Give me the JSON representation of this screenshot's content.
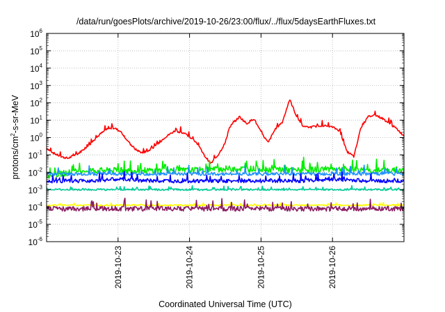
{
  "chart_data": {
    "type": "line",
    "title": "/data/run/goesPlots/archive/2019-10-26/23:00/flux/../flux/5daysEarthFluxes.txt",
    "xlabel": "Coordinated Universal Time (UTC)",
    "ylabel_parts": [
      "protons/cm",
      "2",
      "-s-sr-MeV"
    ],
    "yscale": "log",
    "ylim_exp": [
      -6,
      6
    ],
    "y_ticks_exp": [
      -6,
      -5,
      -4,
      -3,
      -2,
      -1,
      0,
      1,
      2,
      3,
      4,
      5,
      6
    ],
    "x_ticks": [
      "2019-10-23",
      "2019-10-24",
      "2019-10-25",
      "2019-10-26"
    ],
    "xlim_days": [
      22.0,
      27.0
    ],
    "x_tick_days": [
      23.0,
      24.0,
      25.0,
      26.0
    ],
    "grid": true,
    "series": [
      {
        "color": "#ff0000",
        "log_points": [
          [
            22.0,
            -0.6
          ],
          [
            22.1,
            -0.9
          ],
          [
            22.2,
            -1.1
          ],
          [
            22.3,
            -1.2
          ],
          [
            22.45,
            -0.9
          ],
          [
            22.6,
            -0.4
          ],
          [
            22.75,
            0.2
          ],
          [
            22.85,
            0.5
          ],
          [
            22.95,
            0.55
          ],
          [
            23.05,
            0.3
          ],
          [
            23.15,
            -0.3
          ],
          [
            23.25,
            -0.7
          ],
          [
            23.35,
            -0.9
          ],
          [
            23.5,
            -0.6
          ],
          [
            23.65,
            0.0
          ],
          [
            23.8,
            0.4
          ],
          [
            23.95,
            0.2
          ],
          [
            24.1,
            -0.3
          ],
          [
            24.2,
            -1.0
          ],
          [
            24.3,
            -1.5
          ],
          [
            24.4,
            -1.0
          ],
          [
            24.5,
            -0.3
          ],
          [
            24.55,
            0.5
          ],
          [
            24.6,
            0.8
          ],
          [
            24.7,
            1.2
          ],
          [
            24.8,
            0.8
          ],
          [
            24.9,
            1.1
          ],
          [
            25.0,
            0.3
          ],
          [
            25.1,
            -0.3
          ],
          [
            25.2,
            0.5
          ],
          [
            25.3,
            0.9
          ],
          [
            25.4,
            2.2
          ],
          [
            25.5,
            1.2
          ],
          [
            25.6,
            0.6
          ],
          [
            25.7,
            0.6
          ],
          [
            25.85,
            0.7
          ],
          [
            26.0,
            0.6
          ],
          [
            26.1,
            0.4
          ],
          [
            26.2,
            -0.8
          ],
          [
            26.3,
            -1.1
          ],
          [
            26.4,
            0.6
          ],
          [
            26.5,
            1.2
          ],
          [
            26.6,
            1.3
          ],
          [
            26.7,
            1.1
          ],
          [
            26.8,
            0.8
          ],
          [
            26.9,
            0.5
          ],
          [
            27.0,
            0.1
          ]
        ]
      },
      {
        "color": "#00ee00",
        "log_points": [
          [
            22.0,
            -2.2
          ],
          [
            22.5,
            -1.9
          ],
          [
            23.0,
            -1.9
          ],
          [
            23.5,
            -1.9
          ],
          [
            24.0,
            -1.9
          ],
          [
            24.5,
            -1.8
          ],
          [
            25.0,
            -1.8
          ],
          [
            25.5,
            -1.9
          ],
          [
            26.0,
            -1.8
          ],
          [
            26.5,
            -1.9
          ],
          [
            27.0,
            -1.9
          ]
        ]
      },
      {
        "color": "#1e90ff",
        "log_points": [
          [
            22.0,
            -2.1
          ],
          [
            22.5,
            -2.1
          ],
          [
            23.0,
            -2.1
          ],
          [
            23.5,
            -2.1
          ],
          [
            24.0,
            -2.1
          ],
          [
            24.5,
            -2.1
          ],
          [
            25.0,
            -2.1
          ],
          [
            25.5,
            -2.1
          ],
          [
            26.0,
            -2.1
          ],
          [
            26.5,
            -2.1
          ],
          [
            27.0,
            -2.1
          ]
        ]
      },
      {
        "color": "#0000ff",
        "log_points": [
          [
            22.0,
            -2.5
          ],
          [
            22.5,
            -2.5
          ],
          [
            23.0,
            -2.4
          ],
          [
            23.5,
            -2.5
          ],
          [
            24.0,
            -2.5
          ],
          [
            24.5,
            -2.5
          ],
          [
            25.0,
            -2.5
          ],
          [
            25.5,
            -2.5
          ],
          [
            26.0,
            -2.4
          ],
          [
            26.5,
            -2.5
          ],
          [
            27.0,
            -2.5
          ]
        ]
      },
      {
        "color": "#00cc99",
        "log_points": [
          [
            22.0,
            -3.0
          ],
          [
            22.5,
            -3.0
          ],
          [
            23.0,
            -3.0
          ],
          [
            23.5,
            -3.0
          ],
          [
            24.0,
            -3.0
          ],
          [
            24.5,
            -3.0
          ],
          [
            25.0,
            -3.0
          ],
          [
            25.5,
            -3.0
          ],
          [
            26.0,
            -3.0
          ],
          [
            26.5,
            -3.0
          ],
          [
            27.0,
            -3.0
          ]
        ]
      },
      {
        "color": "#ffff00",
        "log_points": [
          [
            22.0,
            -3.9
          ],
          [
            22.5,
            -3.9
          ],
          [
            23.0,
            -3.9
          ],
          [
            23.5,
            -3.9
          ],
          [
            24.0,
            -3.9
          ],
          [
            24.5,
            -3.9
          ],
          [
            25.0,
            -3.9
          ],
          [
            25.5,
            -3.9
          ],
          [
            26.0,
            -3.9
          ],
          [
            26.5,
            -3.9
          ],
          [
            27.0,
            -3.9
          ]
        ]
      },
      {
        "color": "#8b1c62",
        "log_points": [
          [
            22.0,
            -4.1
          ],
          [
            22.5,
            -4.1
          ],
          [
            23.0,
            -4.1
          ],
          [
            23.5,
            -4.1
          ],
          [
            24.0,
            -4.1
          ],
          [
            24.5,
            -4.1
          ],
          [
            25.0,
            -4.1
          ],
          [
            25.5,
            -4.1
          ],
          [
            26.0,
            -4.1
          ],
          [
            26.5,
            -4.1
          ],
          [
            27.0,
            -4.1
          ]
        ]
      }
    ]
  }
}
